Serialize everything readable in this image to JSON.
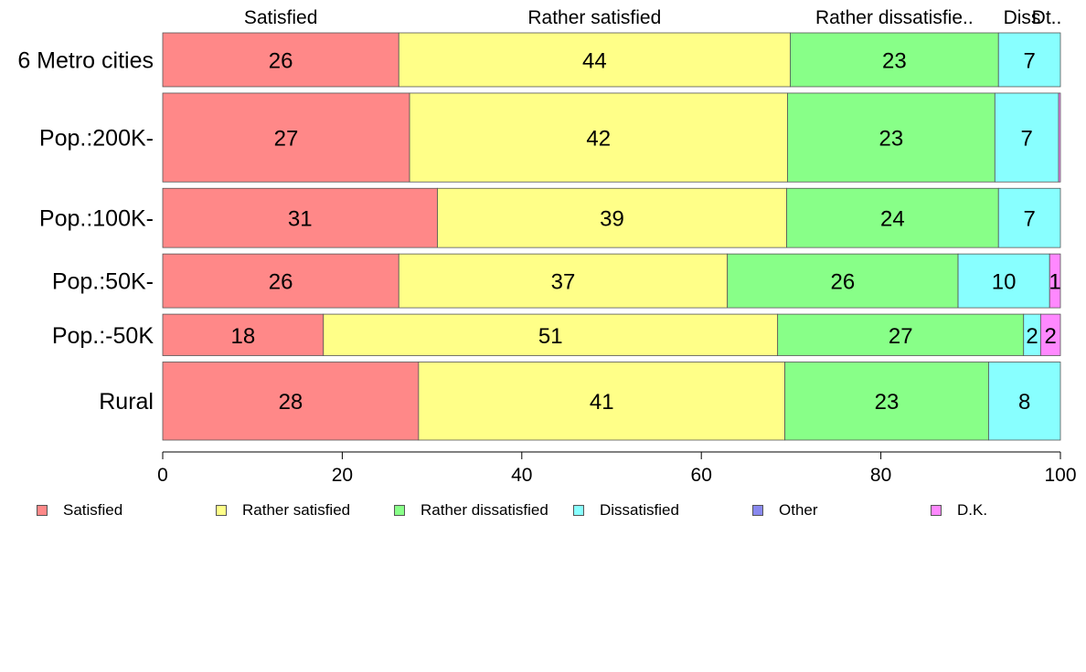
{
  "chart_data": {
    "type": "bar",
    "orientation": "horizontal",
    "stacked": true,
    "categories": [
      "6 Metro cities",
      "Pop.:200K-",
      "Pop.:100K-",
      "Pop.:50K-",
      "Pop.:-50K",
      "Rural"
    ],
    "series": [
      {
        "name": "Satisfied",
        "values": [
          26.3,
          27.5,
          30.6,
          26.3,
          17.9,
          28.5
        ],
        "labels": [
          "26",
          "27",
          "31",
          "26",
          "18",
          "28"
        ],
        "color": "#FF8888"
      },
      {
        "name": "Rather satisfied",
        "values": [
          43.6,
          42.1,
          38.9,
          36.6,
          50.6,
          40.8
        ],
        "labels": [
          "44",
          "42",
          "39",
          "37",
          "51",
          "41"
        ],
        "color": "#FFFF88"
      },
      {
        "name": "Rather dissatisfied",
        "values": [
          23.2,
          23.1,
          23.6,
          25.7,
          27.4,
          22.7
        ],
        "labels": [
          "23",
          "23",
          "24",
          "26",
          "27",
          "23"
        ],
        "color": "#88FF88"
      },
      {
        "name": "Dissatisfied",
        "values": [
          6.9,
          7.1,
          6.9,
          10.2,
          1.9,
          8.0
        ],
        "labels": [
          "7",
          "7",
          "7",
          "10",
          "2",
          "8"
        ],
        "color": "#88FFFF"
      },
      {
        "name": "Other",
        "values": [
          0,
          0,
          0,
          0,
          0,
          0
        ],
        "labels": [
          "",
          "",
          "",
          "",
          "",
          ""
        ],
        "color": "#8888EE"
      },
      {
        "name": "D.K.",
        "values": [
          0,
          0.2,
          0,
          1.2,
          2.2,
          0
        ],
        "labels": [
          "",
          "",
          "",
          "1",
          "2",
          ""
        ],
        "color": "#FF88FF"
      }
    ],
    "top_labels": [
      "Satisfied",
      "Rather satisfied",
      "Rather dissatisfie..",
      "Diss",
      "Dt.."
    ],
    "xlim": [
      0,
      100
    ],
    "x_ticks": [
      0,
      20,
      40,
      60,
      80,
      100
    ],
    "x_tick_labels": [
      "0",
      "20",
      "40",
      "60",
      "80",
      "100"
    ],
    "row_weights": [
      1,
      1.65,
      1.1,
      1,
      0.77,
      1.45
    ],
    "legend_position": "bottom",
    "grid": false
  }
}
